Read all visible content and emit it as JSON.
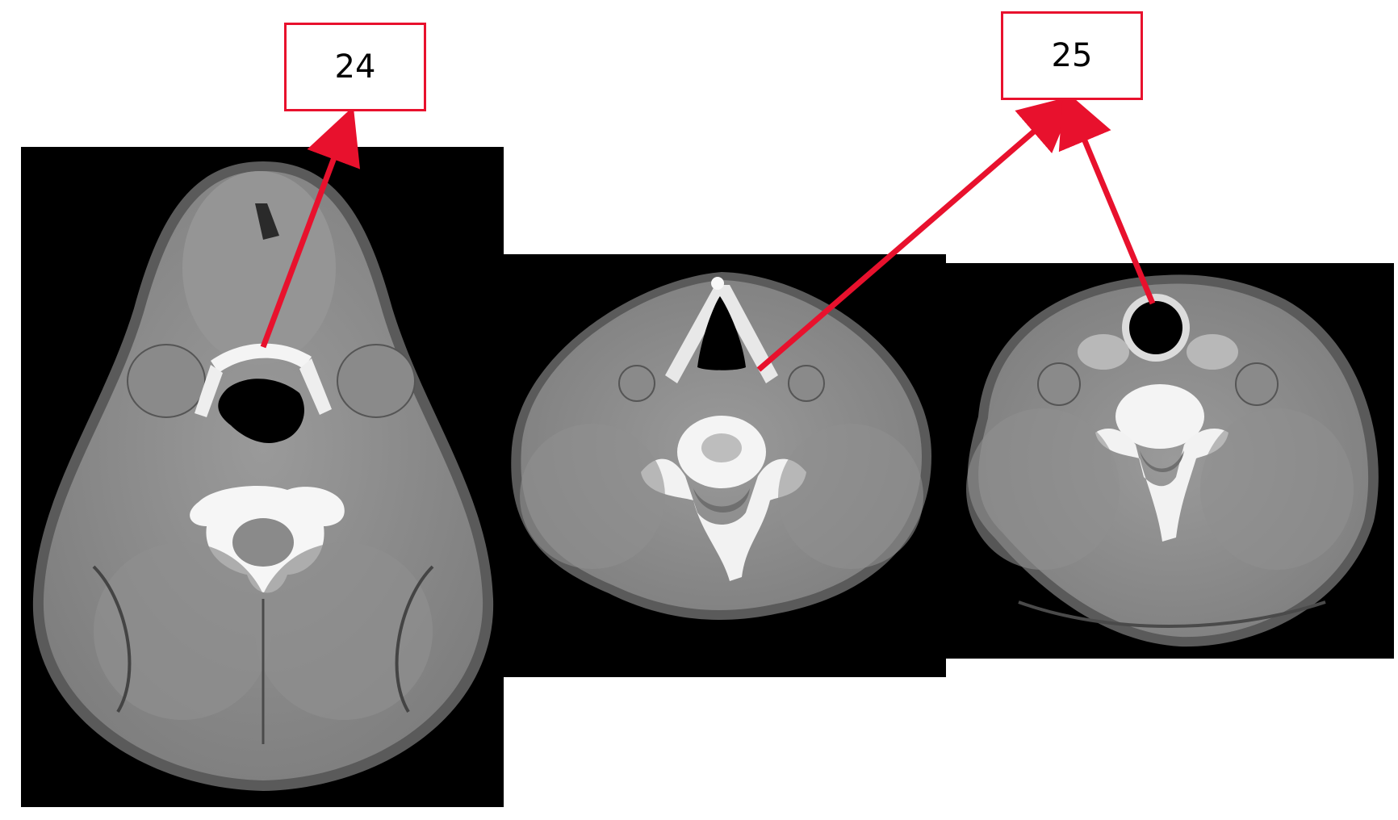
{
  "labels": [
    {
      "id": "24",
      "text": "24"
    },
    {
      "id": "25",
      "text": "25"
    }
  ],
  "images": [
    {
      "name": "ct-axial-slice-upper",
      "description_icon": "ct-scan-icon"
    },
    {
      "name": "ct-axial-slice-middle",
      "description_icon": "ct-scan-icon"
    },
    {
      "name": "ct-axial-slice-lower",
      "description_icon": "ct-scan-icon"
    }
  ],
  "colors": {
    "annotation_red": "#e8112d",
    "tissue_gray": "#8c8c8c",
    "bone_white": "#f2f2f2",
    "air_black": "#000000",
    "background": "#ffffff"
  }
}
